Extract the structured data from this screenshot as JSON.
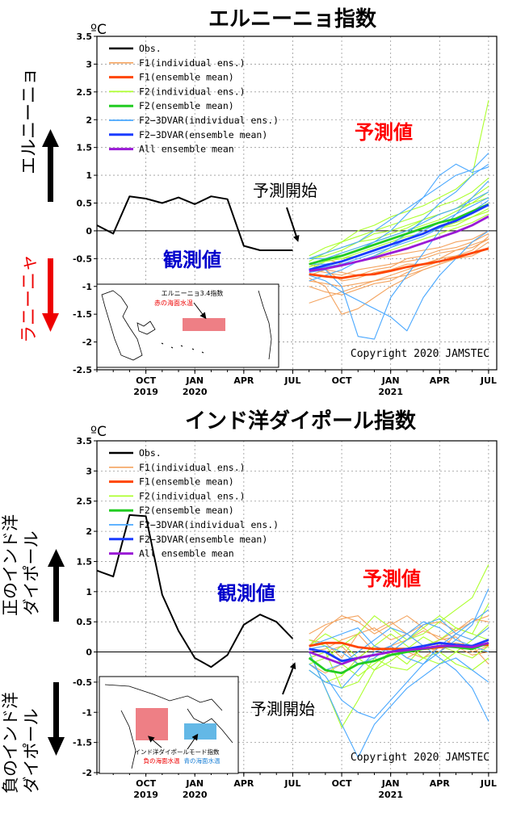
{
  "colors": {
    "obs": "#000000",
    "f1_ind": "#f4a460",
    "f1_mean": "#ff4500",
    "f2_ind": "#adff2f",
    "f2_mean": "#22cc22",
    "f2_3dvar_ind": "#4aa8ff",
    "f2_3dvar_mean": "#1a3cff",
    "all_mean": "#9a1ad6",
    "obs_text": "#0000cc",
    "fcst_text": "#ff0000",
    "warm_box": "#ee7f85",
    "cool_box": "#63b8e6"
  },
  "legend": [
    "Obs.",
    "F1(individual ens.)",
    "F1(ensemble mean)",
    "F2(individual ens.)",
    "F2(ensemble mean)",
    "F2−3DVAR(individual ens.)",
    "F2−3DVAR(ensemble mean)",
    "All ensemble mean"
  ],
  "chart_data": [
    {
      "type": "line",
      "title": "エルニーニョ指数",
      "unit": "ºC",
      "ylim": [
        -2.5,
        3.5
      ],
      "yticks": [
        "3.5",
        "3",
        "2.5",
        "2",
        "1.5",
        "1",
        "0.5",
        "0",
        "-0.5",
        "-1",
        "-1.5",
        "-2",
        "-2.5"
      ],
      "x_month_ticks": [
        {
          "m": 3,
          "label": "OCT"
        },
        {
          "m": 6,
          "label": "JAN"
        },
        {
          "m": 9,
          "label": "APR"
        },
        {
          "m": 12,
          "label": "JUL"
        },
        {
          "m": 15,
          "label": "OCT"
        },
        {
          "m": 18,
          "label": "JAN"
        },
        {
          "m": 21,
          "label": "APR"
        },
        {
          "m": 24,
          "label": "JUL"
        }
      ],
      "x_year_labels": [
        {
          "m": 3,
          "label": "2019"
        },
        {
          "m": 6,
          "label": "2020"
        },
        {
          "m": 18,
          "label": "2021"
        }
      ],
      "grid": true,
      "obs": {
        "x": [
          0,
          1,
          2,
          3,
          4,
          5,
          6,
          7,
          8,
          9,
          10,
          11,
          12
        ],
        "y": [
          0.1,
          -0.05,
          0.62,
          0.58,
          0.5,
          0.6,
          0.48,
          0.62,
          0.57,
          -0.27,
          -0.35,
          -0.35,
          -0.35
        ]
      },
      "forecast_x": [
        13,
        14,
        15,
        16,
        17,
        18,
        19,
        20,
        21,
        22,
        23,
        24
      ],
      "means": [
        {
          "key": "f1_mean",
          "y": [
            -0.78,
            -0.82,
            -0.85,
            -0.8,
            -0.78,
            -0.72,
            -0.65,
            -0.6,
            -0.55,
            -0.48,
            -0.4,
            -0.32
          ]
        },
        {
          "key": "f2_mean",
          "y": [
            -0.6,
            -0.52,
            -0.45,
            -0.35,
            -0.25,
            -0.15,
            -0.05,
            0.05,
            0.15,
            0.22,
            0.35,
            0.48
          ]
        },
        {
          "key": "f2_3dvar_mean",
          "y": [
            -0.7,
            -0.62,
            -0.55,
            -0.45,
            -0.35,
            -0.25,
            -0.15,
            -0.05,
            0.08,
            0.18,
            0.32,
            0.47
          ]
        },
        {
          "key": "all_mean",
          "y": [
            -0.72,
            -0.68,
            -0.62,
            -0.55,
            -0.48,
            -0.4,
            -0.32,
            -0.22,
            -0.12,
            -0.02,
            0.1,
            0.26
          ]
        }
      ],
      "ensembles": [
        {
          "key": "f1_ind",
          "y": [
            [
              -0.9,
              -0.95,
              -1.0,
              -0.95,
              -0.9,
              -0.85,
              -0.8,
              -0.7,
              -0.6,
              -0.5,
              -0.4,
              -0.3
            ],
            [
              -0.7,
              -0.75,
              -0.8,
              -0.7,
              -0.65,
              -0.6,
              -0.55,
              -0.5,
              -0.4,
              -0.35,
              -0.25,
              -0.15
            ],
            [
              -1.3,
              -1.2,
              -1.1,
              -1.0,
              -0.9,
              -0.8,
              -0.7,
              -0.6,
              -0.5,
              -0.45,
              -0.35,
              -0.1
            ],
            [
              -0.6,
              -0.7,
              -0.75,
              -0.8,
              -0.7,
              -0.65,
              -0.5,
              -0.45,
              -0.35,
              -0.3,
              -0.2,
              -0.05
            ],
            [
              -1.0,
              -1.1,
              -1.15,
              -1.05,
              -0.95,
              -0.9,
              -0.75,
              -0.65,
              -0.55,
              -0.45,
              -0.4,
              -0.2
            ],
            [
              -0.8,
              -0.7,
              -0.9,
              -0.85,
              -0.75,
              -0.7,
              -0.6,
              -0.6,
              -0.5,
              -0.35,
              -0.3,
              -0.15
            ],
            [
              -0.85,
              -1.0,
              -1.5,
              -1.4,
              -1.2,
              -1.0,
              -0.85,
              -0.7,
              -0.6,
              -0.5,
              -0.45,
              -0.3
            ],
            [
              -0.6,
              -0.5,
              -0.6,
              -0.55,
              -0.5,
              -0.45,
              -0.4,
              -0.35,
              -0.3,
              -0.2,
              -0.15,
              0.0
            ]
          ]
        },
        {
          "key": "f2_ind",
          "y": [
            [
              -0.5,
              -0.4,
              -0.3,
              -0.2,
              -0.05,
              0.0,
              0.1,
              0.2,
              0.3,
              0.4,
              0.5,
              0.6
            ],
            [
              -0.7,
              -0.55,
              -0.4,
              -0.3,
              -0.2,
              -0.1,
              0.0,
              0.1,
              0.2,
              0.35,
              0.5,
              0.7
            ],
            [
              -0.45,
              -0.3,
              -0.2,
              -0.1,
              0.0,
              0.1,
              0.2,
              0.3,
              0.45,
              0.55,
              0.7,
              0.95
            ],
            [
              -0.6,
              -0.5,
              -0.5,
              -0.4,
              -0.3,
              -0.2,
              -0.1,
              -0.05,
              0.05,
              0.1,
              0.25,
              0.35
            ],
            [
              -0.55,
              -0.4,
              -0.2,
              0.0,
              0.1,
              0.25,
              0.35,
              0.45,
              0.6,
              0.75,
              1.0,
              2.35
            ],
            [
              -0.7,
              -0.65,
              -0.6,
              -0.55,
              -0.45,
              -0.35,
              -0.25,
              -0.15,
              -0.05,
              0.05,
              0.15,
              0.3
            ],
            [
              -0.5,
              -0.45,
              -0.35,
              -0.2,
              -0.15,
              -0.05,
              0.05,
              0.2,
              0.3,
              0.4,
              0.6,
              0.8
            ],
            [
              -0.65,
              -0.55,
              -0.5,
              -0.45,
              -0.35,
              -0.25,
              -0.15,
              -0.05,
              0.05,
              0.15,
              0.25,
              0.4
            ]
          ]
        },
        {
          "key": "f2_3dvar_ind",
          "y": [
            [
              -0.8,
              -0.9,
              -1.1,
              -1.25,
              -1.4,
              -1.55,
              -1.8,
              -1.2,
              -0.8,
              -0.5,
              -0.2,
              0.0
            ],
            [
              -0.5,
              -0.5,
              -0.4,
              -0.3,
              -0.2,
              -0.1,
              0.0,
              0.15,
              0.3,
              0.4,
              0.55,
              0.7
            ],
            [
              -0.6,
              -0.6,
              -0.55,
              -0.45,
              -0.35,
              -0.25,
              -0.05,
              0.2,
              0.5,
              0.7,
              1.0,
              1.2
            ],
            [
              -0.75,
              -0.7,
              -1.0,
              -1.9,
              -1.95,
              -1.2,
              -0.8,
              -0.4,
              0.0,
              0.3,
              0.6,
              0.9
            ],
            [
              -0.5,
              -0.4,
              -0.3,
              -0.2,
              0.0,
              0.2,
              0.4,
              0.6,
              0.8,
              1.0,
              1.1,
              1.4
            ],
            [
              -0.9,
              -0.8,
              -0.7,
              -0.55,
              -0.45,
              -0.3,
              -0.2,
              -0.1,
              0.05,
              0.2,
              0.35,
              0.55
            ],
            [
              -0.6,
              -0.5,
              -0.45,
              -0.35,
              -0.2,
              0.0,
              0.3,
              0.6,
              1.0,
              1.2,
              1.05,
              1.15
            ],
            [
              -0.7,
              -0.65,
              -0.6,
              -0.5,
              -0.4,
              -0.3,
              -0.15,
              0.0,
              0.15,
              0.3,
              0.45,
              0.6
            ]
          ]
        }
      ]
    },
    {
      "type": "line",
      "title": "インド洋ダイポール指数",
      "unit": "ºC",
      "ylim": [
        -2,
        3.5
      ],
      "yticks": [
        "3.5",
        "3",
        "2.5",
        "2",
        "1.5",
        "1",
        "0.5",
        "0",
        "-0.5",
        "-1",
        "-1.5",
        "-2"
      ],
      "x_month_ticks": [
        {
          "m": 3,
          "label": "OCT"
        },
        {
          "m": 6,
          "label": "JAN"
        },
        {
          "m": 9,
          "label": "APR"
        },
        {
          "m": 12,
          "label": "JUL"
        },
        {
          "m": 15,
          "label": "OCT"
        },
        {
          "m": 18,
          "label": "JAN"
        },
        {
          "m": 21,
          "label": "APR"
        },
        {
          "m": 24,
          "label": "JUL"
        }
      ],
      "x_year_labels": [
        {
          "m": 3,
          "label": "2019"
        },
        {
          "m": 6,
          "label": "2020"
        },
        {
          "m": 18,
          "label": "2021"
        }
      ],
      "grid": true,
      "obs": {
        "x": [
          0,
          1,
          2,
          3,
          4,
          5,
          6,
          7,
          8,
          9,
          10,
          11,
          12
        ],
        "y": [
          1.35,
          1.25,
          2.27,
          2.25,
          0.95,
          0.35,
          -0.1,
          -0.25,
          -0.05,
          0.45,
          0.62,
          0.5,
          0.22
        ]
      },
      "forecast_x": [
        13,
        14,
        15,
        16,
        17,
        18,
        19,
        20,
        21,
        22,
        23,
        24
      ],
      "means": [
        {
          "key": "f1_mean",
          "y": [
            0.1,
            0.15,
            0.15,
            0.08,
            0.05,
            0.05,
            0.05,
            0.05,
            0.08,
            0.1,
            0.1,
            0.12
          ]
        },
        {
          "key": "f2_mean",
          "y": [
            -0.1,
            -0.3,
            -0.35,
            -0.2,
            -0.15,
            -0.05,
            0.0,
            0.05,
            0.1,
            0.08,
            0.05,
            0.15
          ]
        },
        {
          "key": "f2_3dvar_mean",
          "y": [
            0.05,
            0.0,
            -0.15,
            -0.1,
            -0.05,
            0.0,
            0.05,
            0.1,
            0.15,
            0.12,
            0.1,
            0.2
          ]
        },
        {
          "key": "all_mean",
          "y": [
            0.0,
            -0.1,
            -0.2,
            -0.1,
            -0.05,
            0.0,
            0.03,
            0.06,
            0.1,
            0.1,
            0.08,
            0.15
          ]
        }
      ],
      "ensembles": [
        {
          "key": "f1_ind",
          "y": [
            [
              0.3,
              0.45,
              0.55,
              0.6,
              0.35,
              0.5,
              0.3,
              0.45,
              0.5,
              0.35,
              0.5,
              0.6
            ],
            [
              0.0,
              0.05,
              0.2,
              0.3,
              0.0,
              0.1,
              -0.1,
              0.05,
              0.2,
              0.25,
              0.0,
              0.1
            ],
            [
              0.2,
              0.15,
              -0.1,
              0.3,
              0.4,
              0.2,
              0.3,
              0.1,
              0.0,
              0.3,
              0.2,
              0.4
            ],
            [
              -0.1,
              0.0,
              0.1,
              -0.2,
              -0.1,
              0.1,
              0.2,
              0.35,
              0.25,
              0.1,
              -0.05,
              0.0
            ],
            [
              0.1,
              0.4,
              0.6,
              0.5,
              0.3,
              0.45,
              0.6,
              0.4,
              0.2,
              0.35,
              0.55,
              0.5
            ],
            [
              -0.2,
              -0.35,
              -0.2,
              -0.1,
              0.1,
              -0.05,
              0.0,
              -0.1,
              0.1,
              0.15,
              0.1,
              -0.2
            ]
          ]
        },
        {
          "key": "f2_ind",
          "y": [
            [
              0.0,
              -0.6,
              -1.25,
              -0.8,
              -0.3,
              0.0,
              -0.2,
              0.1,
              0.2,
              0.4,
              0.3,
              0.8
            ],
            [
              -0.2,
              -0.1,
              0.1,
              0.3,
              0.6,
              0.4,
              0.2,
              0.3,
              0.5,
              0.7,
              0.9,
              1.45
            ],
            [
              0.1,
              0.3,
              0.15,
              -0.1,
              -0.3,
              -0.15,
              0.05,
              0.25,
              0.1,
              0.0,
              -0.1,
              0.1
            ],
            [
              -0.3,
              -0.5,
              -0.4,
              -0.1,
              0.1,
              0.3,
              0.1,
              -0.1,
              -0.2,
              0.0,
              0.2,
              0.45
            ],
            [
              0.2,
              0.1,
              -0.2,
              -0.4,
              -0.2,
              0.0,
              0.2,
              0.4,
              0.6,
              0.4,
              0.3,
              0.2
            ],
            [
              -0.1,
              0.0,
              -0.6,
              -0.5,
              -0.1,
              -0.25,
              -0.3,
              -0.1,
              0.0,
              -0.2,
              -0.3,
              -0.1
            ]
          ]
        },
        {
          "key": "f2_3dvar_ind",
          "y": [
            [
              0.0,
              -0.6,
              -1.2,
              -1.75,
              -1.2,
              -0.9,
              -0.6,
              -0.4,
              -0.2,
              -0.1,
              -0.3,
              -0.5
            ],
            [
              -0.2,
              -0.4,
              -0.8,
              -1.0,
              -1.1,
              -0.8,
              -0.5,
              -0.2,
              0.1,
              0.3,
              0.5,
              0.7
            ],
            [
              0.1,
              0.2,
              0.3,
              0.4,
              0.1,
              0.0,
              0.2,
              0.45,
              0.55,
              0.3,
              0.2,
              0.4
            ],
            [
              -0.1,
              -0.3,
              -0.2,
              0.0,
              0.2,
              0.4,
              0.3,
              0.1,
              -0.1,
              -0.3,
              -0.6,
              -1.15
            ],
            [
              0.05,
              0.1,
              0.0,
              -0.2,
              -0.1,
              0.1,
              0.3,
              0.5,
              0.4,
              0.2,
              0.45,
              1.05
            ],
            [
              -0.3,
              -0.5,
              -0.6,
              -0.3,
              0.0,
              0.1,
              -0.1,
              -0.2,
              0.0,
              0.2,
              0.1,
              0.0
            ]
          ]
        }
      ]
    }
  ],
  "panels": [
    {
      "chart_title": "エルニーニョ指数",
      "unit": "ºC",
      "obs_label": "観測値",
      "fcst_label": "予測値",
      "start_label": "予測開始",
      "copyright": "Copyright 2020 JAMSTEC",
      "pos_label": "エルニーニョ",
      "neg_label": "ラニーニャ",
      "inset_title": "エルニーニョ3.4指数",
      "inset_sub": "赤の海面水温"
    },
    {
      "chart_title": "インド洋ダイポール指数",
      "unit": "ºC",
      "obs_label": "観測値",
      "fcst_label": "予測値",
      "start_label": "予測開始",
      "copyright": "Copyright 2020 JAMSTEC",
      "pos_label_1": "正のインド洋",
      "pos_label_2": "ダイポール",
      "neg_label_1": "負のインド洋",
      "neg_label_2": "ダイポール",
      "inset_title": "インド洋ダイポールモード指数",
      "inset_sub_a": "負の海面水温",
      "inset_sub_b": "青の海面水温"
    }
  ]
}
